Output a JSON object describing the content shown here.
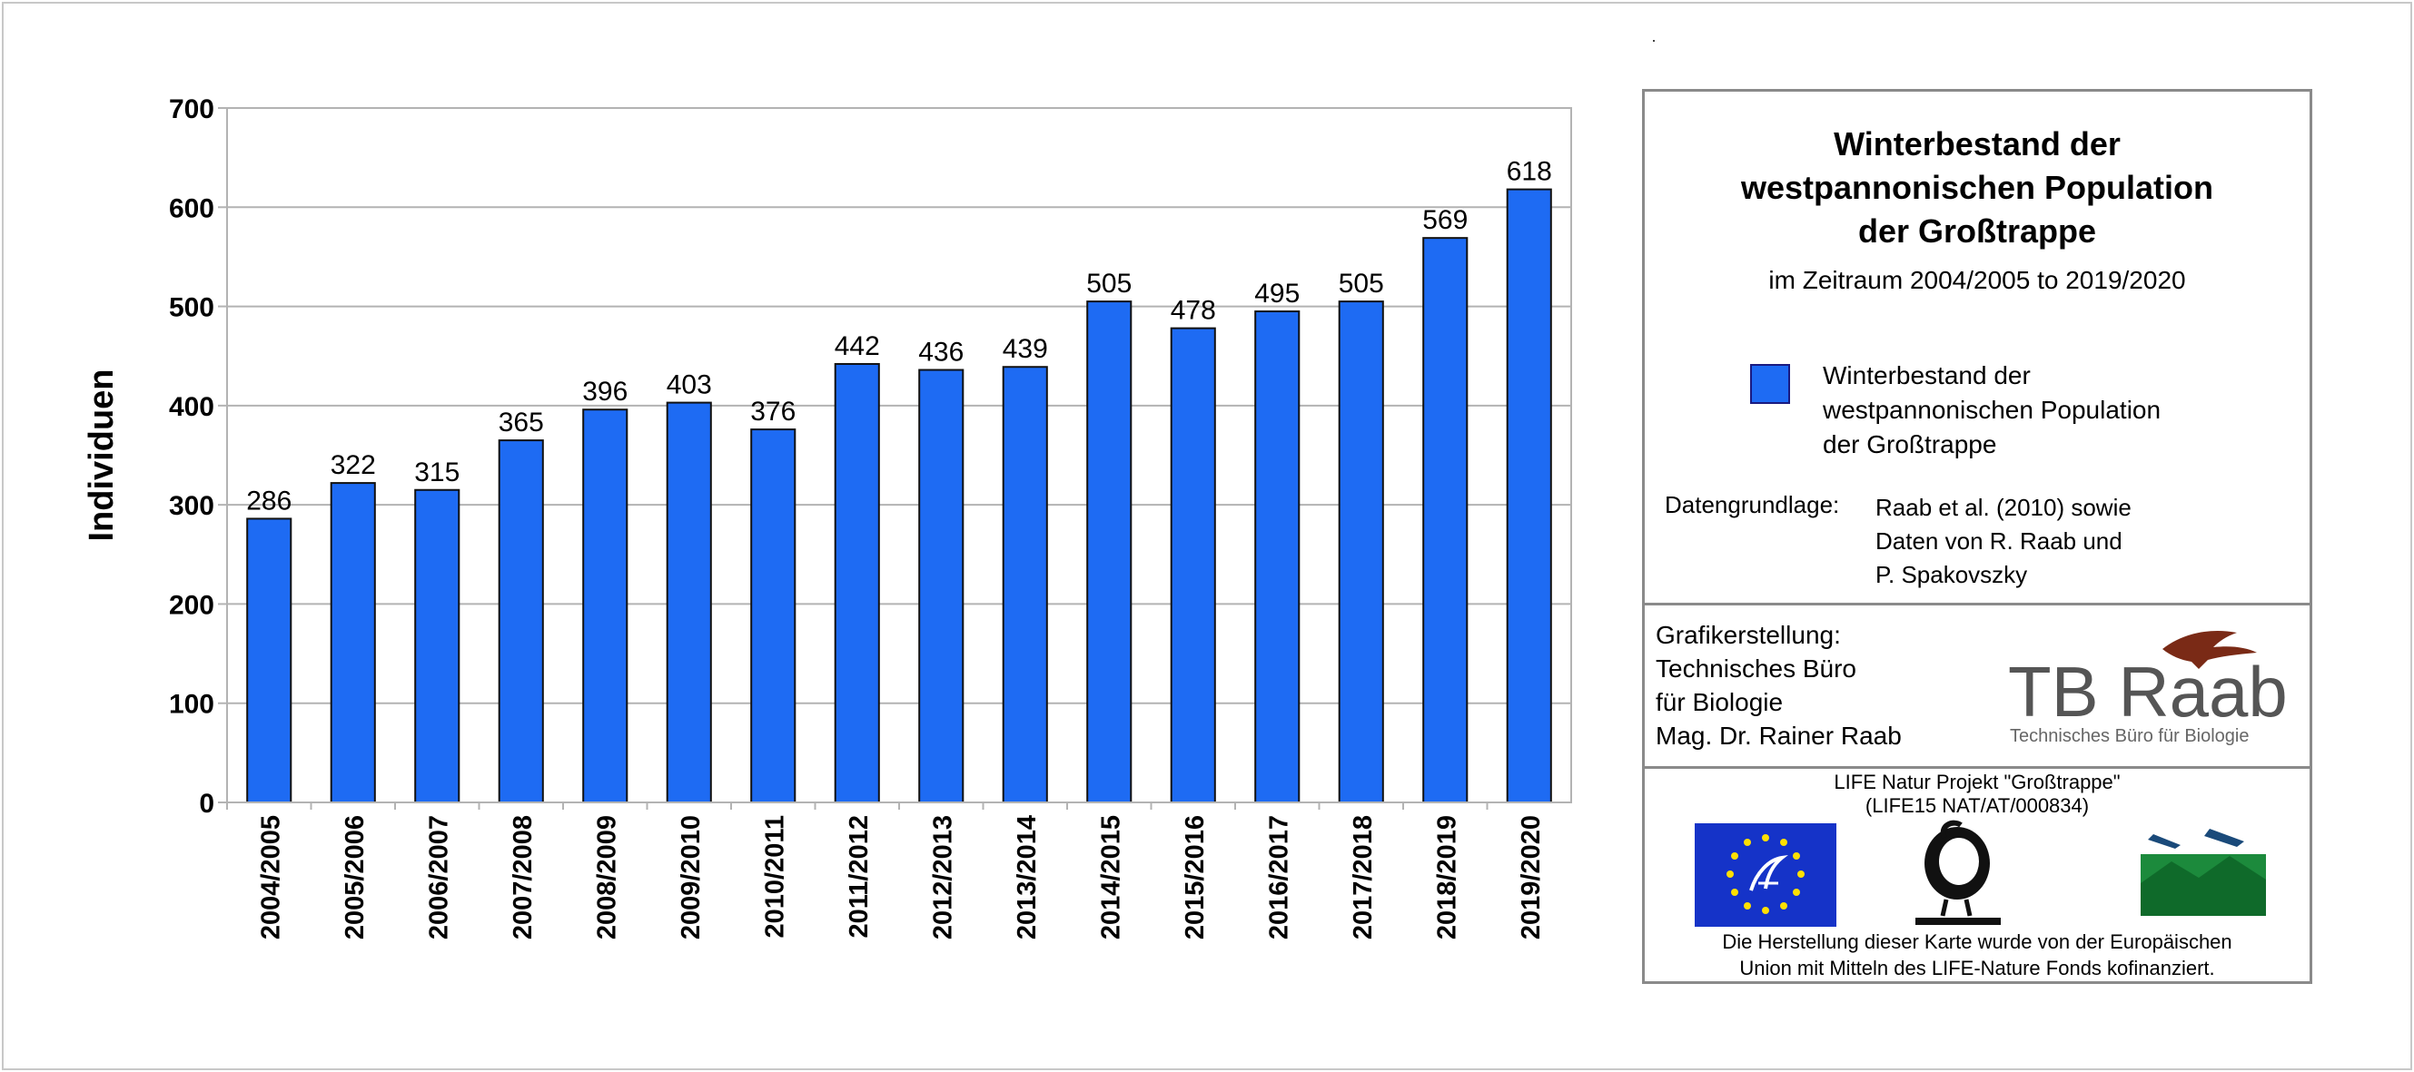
{
  "chart_data": {
    "type": "bar",
    "categories": [
      "2004/2005",
      "2005/2006",
      "2006/2007",
      "2007/2008",
      "2008/2009",
      "2009/2010",
      "2010/2011",
      "2011/2012",
      "2012/2013",
      "2013/2014",
      "2014/2015",
      "2015/2016",
      "2016/2017",
      "2017/2018",
      "2018/2019",
      "2019/2020"
    ],
    "values": [
      286,
      322,
      315,
      365,
      396,
      403,
      376,
      442,
      436,
      439,
      505,
      478,
      495,
      505,
      569,
      618
    ],
    "ylabel": "Individuen",
    "xlabel": "",
    "ylim": [
      0,
      700
    ],
    "yticks": [
      0,
      100,
      200,
      300,
      400,
      500,
      600,
      700
    ],
    "grid": true,
    "bar_color": "#1e6bf3",
    "bar_border_color": "#111111",
    "data_labels": true,
    "legend_placement": "right"
  },
  "legend_panel": {
    "title_lines": [
      "Winterbestand der",
      "westpannonischen Population",
      "der Großtrappe"
    ],
    "subtitle": "im Zeitraum 2004/2005 to 2019/2020",
    "legend_entry_lines": [
      "Winterbestand der",
      "westpannonischen Population",
      "der Großtrappe"
    ],
    "source_label": "Datengrundlage:",
    "source_lines": [
      "Raab et al. (2010) sowie",
      "Daten von R. Raab und",
      "P. Spakovszky"
    ]
  },
  "credit_panel": {
    "lines": [
      "Grafikerstellung:",
      "Technisches Büro",
      "für Biologie",
      "Mag. Dr. Rainer Raab"
    ],
    "logo_main": "TB Raab",
    "logo_sub": "Technisches Büro für Biologie"
  },
  "life_panel": {
    "project_line": "LIFE Natur Projekt \"Großtrappe\"",
    "code_line": "(LIFE15 NAT/AT/000834)",
    "funding_lines": [
      "Die Herstellung dieser Karte wurde von der Europäischen",
      "Union mit Mitteln des LIFE-Nature Fonds kofinanziert."
    ],
    "logos": [
      "eu-life-logo",
      "life-great-bustard-logo",
      "natura-2000-logo"
    ]
  }
}
